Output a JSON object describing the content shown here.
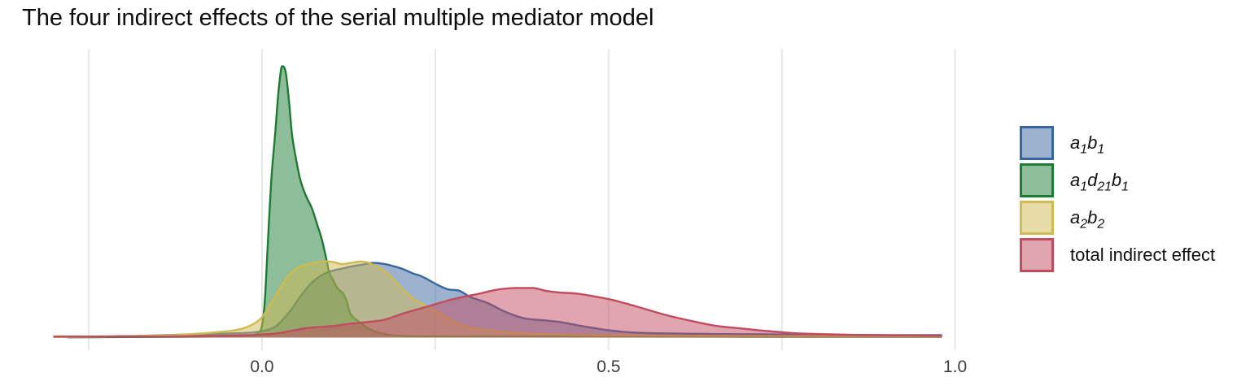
{
  "chart_data": {
    "type": "area",
    "title": "The four indirect effects of the serial multiple mediator model",
    "xlabel": "",
    "ylabel": "",
    "x_axis": {
      "range": [
        -0.32,
        1.07
      ],
      "gridlines": [
        -0.25,
        0.0,
        0.25,
        0.5,
        0.75,
        1.0
      ],
      "ticks": [
        {
          "value": 0.0,
          "label": "0.0"
        },
        {
          "value": 0.5,
          "label": "0.5"
        },
        {
          "value": 1.0,
          "label": "1.0"
        }
      ]
    },
    "y_axis": {
      "visible": false,
      "normalization": "density scaled so tallest peak (a1d21b1) = 1.0"
    },
    "grid_color": "#e7e7e7",
    "tick_label_color": "#404040",
    "fill_alpha": 0.5,
    "series": [
      {
        "id": "a1b1",
        "color": "#3A66A0",
        "x": [
          -0.27,
          -0.18,
          -0.1,
          -0.05,
          0.0,
          0.02,
          0.04,
          0.055,
          0.07,
          0.085,
          0.1,
          0.115,
          0.13,
          0.145,
          0.16,
          0.175,
          0.19,
          0.205,
          0.217,
          0.228,
          0.24,
          0.255,
          0.27,
          0.283,
          0.3,
          0.326,
          0.35,
          0.377,
          0.405,
          0.428,
          0.463,
          0.5,
          0.54,
          0.6,
          0.66,
          0.73,
          0.82,
          0.9,
          0.98
        ],
        "y": [
          0.003,
          0.006,
          0.012,
          0.015,
          0.024,
          0.042,
          0.096,
          0.15,
          0.198,
          0.228,
          0.245,
          0.254,
          0.263,
          0.269,
          0.275,
          0.272,
          0.263,
          0.251,
          0.237,
          0.228,
          0.213,
          0.192,
          0.177,
          0.174,
          0.15,
          0.127,
          0.096,
          0.072,
          0.064,
          0.058,
          0.042,
          0.027,
          0.018,
          0.015,
          0.013,
          0.012,
          0.01,
          0.009,
          0.009
        ]
      },
      {
        "id": "a1d21b1",
        "color": "#1E7B34",
        "x": [
          -0.28,
          -0.2,
          -0.12,
          -0.06,
          -0.03,
          -0.015,
          -0.005,
          0.0,
          0.004,
          0.008,
          0.013,
          0.019,
          0.024,
          0.029,
          0.034,
          0.039,
          0.043,
          0.049,
          0.055,
          0.063,
          0.072,
          0.08,
          0.086,
          0.092,
          0.097,
          0.103,
          0.107,
          0.112,
          0.117,
          0.122,
          0.127,
          0.133,
          0.139,
          0.15,
          0.162,
          0.174,
          0.197,
          0.25,
          0.4,
          0.7,
          0.98
        ],
        "y": [
          0.001,
          0.002,
          0.003,
          0.004,
          0.006,
          0.009,
          0.018,
          0.045,
          0.135,
          0.329,
          0.569,
          0.754,
          0.913,
          1.0,
          0.979,
          0.868,
          0.754,
          0.659,
          0.584,
          0.524,
          0.476,
          0.413,
          0.365,
          0.299,
          0.24,
          0.21,
          0.189,
          0.174,
          0.162,
          0.135,
          0.09,
          0.072,
          0.06,
          0.039,
          0.024,
          0.015,
          0.007,
          0.004,
          0.004,
          0.003,
          0.003
        ]
      },
      {
        "id": "a2b2",
        "color": "#CFBA51",
        "x": [
          -0.3,
          -0.25,
          -0.21,
          -0.16,
          -0.12,
          -0.09,
          -0.06,
          -0.04,
          -0.025,
          -0.01,
          0.0,
          0.009,
          0.02,
          0.033,
          0.045,
          0.056,
          0.068,
          0.08,
          0.092,
          0.103,
          0.115,
          0.128,
          0.14,
          0.15,
          0.16,
          0.172,
          0.185,
          0.2,
          0.215,
          0.23,
          0.248,
          0.265,
          0.283,
          0.3,
          0.326,
          0.36,
          0.4,
          0.45,
          0.5,
          0.6,
          0.75,
          0.9,
          0.98
        ],
        "y": [
          0.002,
          0.003,
          0.004,
          0.007,
          0.01,
          0.015,
          0.021,
          0.027,
          0.036,
          0.054,
          0.075,
          0.111,
          0.156,
          0.21,
          0.245,
          0.263,
          0.272,
          0.278,
          0.281,
          0.278,
          0.271,
          0.275,
          0.28,
          0.278,
          0.269,
          0.254,
          0.228,
          0.186,
          0.15,
          0.126,
          0.102,
          0.075,
          0.051,
          0.037,
          0.027,
          0.019,
          0.013,
          0.01,
          0.009,
          0.007,
          0.006,
          0.005,
          0.005
        ]
      },
      {
        "id": "total",
        "color": "#C24B5F",
        "x": [
          -0.3,
          -0.22,
          -0.15,
          -0.08,
          -0.02,
          0.02,
          0.068,
          0.1,
          0.127,
          0.155,
          0.177,
          0.205,
          0.23,
          0.25,
          0.27,
          0.29,
          0.31,
          0.34,
          0.37,
          0.39,
          0.41,
          0.43,
          0.455,
          0.47,
          0.5,
          0.54,
          0.58,
          0.62,
          0.655,
          0.69,
          0.73,
          0.77,
          0.82,
          0.88,
          0.94,
          0.98
        ],
        "y": [
          0.004,
          0.004,
          0.004,
          0.006,
          0.009,
          0.015,
          0.036,
          0.042,
          0.051,
          0.058,
          0.066,
          0.09,
          0.108,
          0.123,
          0.138,
          0.15,
          0.16,
          0.177,
          0.183,
          0.183,
          0.172,
          0.166,
          0.162,
          0.156,
          0.142,
          0.115,
          0.085,
          0.061,
          0.043,
          0.034,
          0.024,
          0.016,
          0.012,
          0.009,
          0.008,
          0.007
        ]
      }
    ],
    "legend": {
      "position": "right",
      "items": [
        {
          "series": "a1b1",
          "segments": [
            {
              "t": "a",
              "i": true
            },
            {
              "t": "1",
              "i": true,
              "sub": true
            },
            {
              "t": "b",
              "i": true
            },
            {
              "t": "1",
              "i": true,
              "sub": true
            }
          ]
        },
        {
          "series": "a1d21b1",
          "segments": [
            {
              "t": "a",
              "i": true
            },
            {
              "t": "1",
              "i": true,
              "sub": true
            },
            {
              "t": "d",
              "i": true
            },
            {
              "t": "21",
              "i": true,
              "sub": true
            },
            {
              "t": "b",
              "i": true
            },
            {
              "t": "1",
              "i": true,
              "sub": true
            }
          ]
        },
        {
          "series": "a2b2",
          "segments": [
            {
              "t": "a",
              "i": true
            },
            {
              "t": "2",
              "i": true,
              "sub": true
            },
            {
              "t": "b",
              "i": true
            },
            {
              "t": "2",
              "i": true,
              "sub": true
            }
          ]
        },
        {
          "series": "total",
          "segments": [
            {
              "t": "total indirect effect"
            }
          ]
        }
      ]
    }
  }
}
